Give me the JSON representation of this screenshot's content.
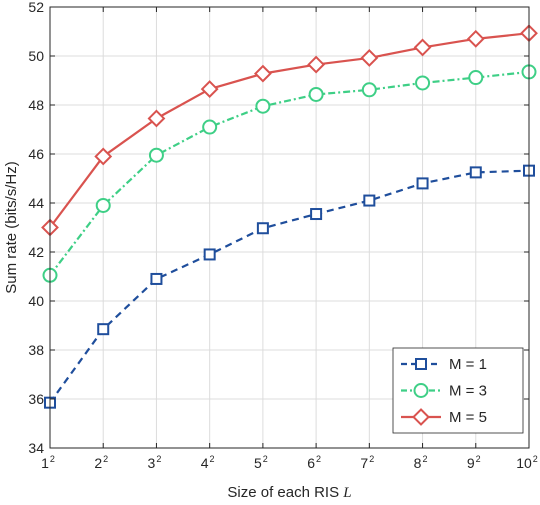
{
  "chart_data": {
    "type": "line",
    "title": "",
    "xlabel_text": "Size of each RIS ",
    "xlabel_symbol": "L",
    "ylabel": "Sum rate (bits/s/Hz)",
    "x_base": [
      1,
      2,
      3,
      4,
      5,
      6,
      7,
      8,
      9,
      10
    ],
    "x_tick_labels": [
      "1",
      "2",
      "3",
      "4",
      "5",
      "6",
      "7",
      "8",
      "9",
      "10"
    ],
    "x_tick_exponent": "2",
    "xlim": [
      1,
      10
    ],
    "ylim": [
      34,
      52
    ],
    "y_ticks": [
      34,
      36,
      38,
      40,
      42,
      44,
      46,
      48,
      50,
      52
    ],
    "grid": true,
    "legend_position": "bottom-right",
    "series": [
      {
        "name": "M = 1",
        "color": "#1f4e9c",
        "line_style": "dashed",
        "marker": "square",
        "values": [
          35.85,
          38.85,
          40.9,
          41.9,
          42.97,
          43.55,
          44.1,
          44.8,
          45.25,
          45.32
        ]
      },
      {
        "name": "M = 3",
        "color": "#3ecf86",
        "line_style": "dash-dot",
        "marker": "circle",
        "values": [
          41.05,
          43.9,
          45.95,
          47.1,
          47.95,
          48.43,
          48.62,
          48.9,
          49.12,
          49.35
        ]
      },
      {
        "name": "M = 5",
        "color": "#d9534f",
        "line_style": "solid",
        "marker": "diamond",
        "values": [
          43.0,
          45.9,
          47.45,
          48.65,
          49.28,
          49.65,
          49.92,
          50.35,
          50.7,
          50.93
        ]
      }
    ]
  }
}
